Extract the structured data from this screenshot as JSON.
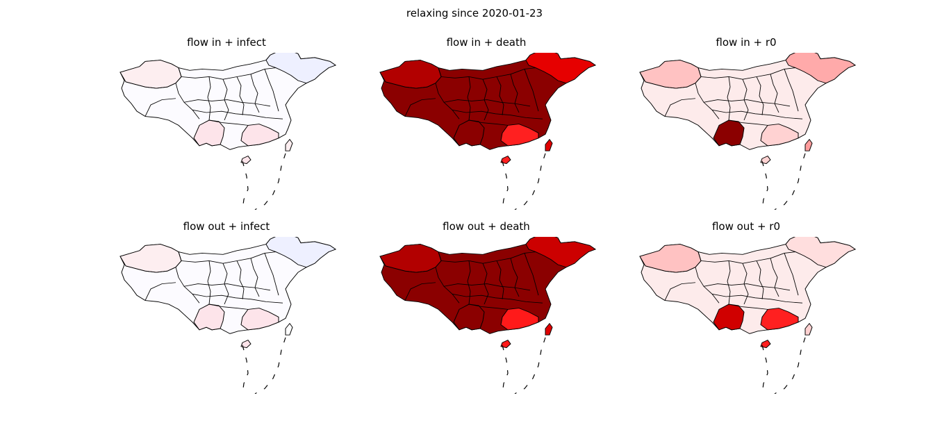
{
  "figure": {
    "title": "relaxing since 2020-01-23"
  },
  "panels": [
    {
      "title": "flow in + infect",
      "base_color": "#fcfbff",
      "accent_colors": [
        "#fdeef0",
        "#eef0ff",
        "#fde4ea",
        "#fdeef0",
        "#fde4ea"
      ]
    },
    {
      "title": "flow in + death",
      "base_color": "#8b0000",
      "accent_colors": [
        "#b20000",
        "#e60000",
        "#ff2020",
        "#e00000",
        "#8b0000"
      ]
    },
    {
      "title": "flow in + r0",
      "base_color": "#fdebeb",
      "accent_colors": [
        "#ffc2c2",
        "#ffaaaa",
        "#ffd2d2",
        "#ff9c9c",
        "#8b0000"
      ]
    },
    {
      "title": "flow out + infect",
      "base_color": "#fcfbff",
      "accent_colors": [
        "#fdeef0",
        "#eef0ff",
        "#fde4ea",
        "#ffffff",
        "#fde4ea"
      ]
    },
    {
      "title": "flow out + death",
      "base_color": "#8b0000",
      "accent_colors": [
        "#b20000",
        "#cc0000",
        "#ff1a1a",
        "#e00000",
        "#8b0000"
      ]
    },
    {
      "title": "flow out + r0",
      "base_color": "#fdebeb",
      "accent_colors": [
        "#ffc2c2",
        "#ffdede",
        "#ff2020",
        "#ffd2d2",
        "#d00000"
      ]
    }
  ]
}
